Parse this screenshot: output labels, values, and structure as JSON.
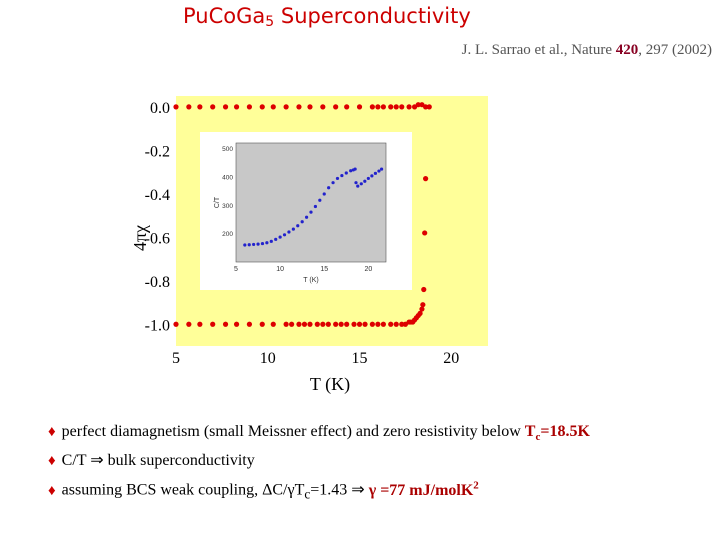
{
  "header": {
    "title_main": "PuCoGa",
    "title_sub": "5",
    "title_rest": " Superconductivity",
    "citation_authors": "J. L. Sarrao et al., Nature ",
    "citation_volume": "420",
    "citation_rest": ", 297 (2002)"
  },
  "chart_data": {
    "type": "scatter",
    "xlabel": "T  (K)",
    "ylabel": "4πχ",
    "xlim": [
      5,
      22
    ],
    "ylim": [
      -1.1,
      0.05
    ],
    "xticks": [
      "5",
      "10",
      "15",
      "20"
    ],
    "yticks": [
      "0.0",
      "-0.2",
      "-0.4",
      "-0.6",
      "-0.8",
      "-1.0"
    ],
    "background_color": "#ffff99",
    "marker_color": "#dd0000",
    "series": [
      {
        "x": [
          5.0,
          5.7,
          6.3,
          7.0,
          7.7,
          8.3,
          9.0,
          9.7,
          10.3,
          11.0,
          11.7,
          12.3,
          13.0,
          13.7,
          14.3,
          15.0,
          15.7,
          16.0,
          16.3,
          16.7,
          17.0,
          17.3,
          17.7,
          18.0,
          18.2,
          18.4,
          18.6,
          18.8
        ],
        "y": [
          0.0,
          0.0,
          0.0,
          0.0,
          0.0,
          0.0,
          0.0,
          0.0,
          0.0,
          0.0,
          0.0,
          0.0,
          0.0,
          0.0,
          0.0,
          0.0,
          0.0,
          0.0,
          0.0,
          0.0,
          0.0,
          0.0,
          0.0,
          0.0,
          0.01,
          0.01,
          0.0,
          0.0
        ]
      },
      {
        "x": [
          5.0,
          5.7,
          6.3,
          7.0,
          7.7,
          8.3,
          9.0,
          9.7,
          10.3,
          11.0,
          11.3,
          11.7,
          12.0,
          12.3,
          12.7,
          13.0,
          13.3,
          13.7,
          14.0,
          14.3,
          14.7,
          15.0,
          15.3,
          15.7,
          16.0,
          16.3,
          16.7,
          17.0,
          17.3,
          17.5,
          17.7,
          17.8,
          17.9,
          18.0,
          18.1,
          18.2,
          18.3,
          18.4,
          18.45
        ],
        "y": [
          -1.0,
          -1.0,
          -1.0,
          -1.0,
          -1.0,
          -1.0,
          -1.0,
          -1.0,
          -1.0,
          -1.0,
          -1.0,
          -1.0,
          -1.0,
          -1.0,
          -1.0,
          -1.0,
          -1.0,
          -1.0,
          -1.0,
          -1.0,
          -1.0,
          -1.0,
          -1.0,
          -1.0,
          -1.0,
          -1.0,
          -1.0,
          -1.0,
          -1.0,
          -1.0,
          -0.99,
          -0.99,
          -0.99,
          -0.98,
          -0.97,
          -0.96,
          -0.95,
          -0.93,
          -0.91
        ]
      },
      {
        "x": [
          18.5,
          18.55,
          18.6
        ],
        "y": [
          -0.84,
          -0.58,
          -0.33
        ]
      }
    ],
    "inset": {
      "xlabel": "T (K)",
      "ylabel": "C/T",
      "xlim": [
        5,
        22
      ],
      "ylim": [
        100,
        520
      ],
      "xticks": [
        "5",
        "10",
        "15",
        "20"
      ],
      "yticks": [
        "500",
        "400",
        "300",
        "200"
      ],
      "background_color": "#c8c8c8",
      "marker_color": "#2222cc",
      "points": [
        {
          "x": 6,
          "y": 160
        },
        {
          "x": 6.5,
          "y": 161
        },
        {
          "x": 7,
          "y": 162
        },
        {
          "x": 7.5,
          "y": 163
        },
        {
          "x": 8,
          "y": 165
        },
        {
          "x": 8.5,
          "y": 168
        },
        {
          "x": 9,
          "y": 173
        },
        {
          "x": 9.5,
          "y": 180
        },
        {
          "x": 10,
          "y": 188
        },
        {
          "x": 10.5,
          "y": 196
        },
        {
          "x": 11,
          "y": 206
        },
        {
          "x": 11.5,
          "y": 216
        },
        {
          "x": 12,
          "y": 228
        },
        {
          "x": 12.5,
          "y": 242
        },
        {
          "x": 13,
          "y": 258
        },
        {
          "x": 13.5,
          "y": 276
        },
        {
          "x": 14,
          "y": 296
        },
        {
          "x": 14.5,
          "y": 318
        },
        {
          "x": 15,
          "y": 340
        },
        {
          "x": 15.5,
          "y": 362
        },
        {
          "x": 16,
          "y": 380
        },
        {
          "x": 16.5,
          "y": 395
        },
        {
          "x": 17,
          "y": 405
        },
        {
          "x": 17.5,
          "y": 414
        },
        {
          "x": 18,
          "y": 422
        },
        {
          "x": 18.3,
          "y": 425
        },
        {
          "x": 18.5,
          "y": 428
        },
        {
          "x": 18.6,
          "y": 380
        },
        {
          "x": 18.8,
          "y": 368
        },
        {
          "x": 19.2,
          "y": 376
        },
        {
          "x": 19.6,
          "y": 385
        },
        {
          "x": 20,
          "y": 395
        },
        {
          "x": 20.4,
          "y": 404
        },
        {
          "x": 20.8,
          "y": 413
        },
        {
          "x": 21.2,
          "y": 421
        },
        {
          "x": 21.5,
          "y": 428
        }
      ]
    }
  },
  "bullets": [
    {
      "text": "perfect diamagnetism (small Meissner effect) and zero resistivity below ",
      "hl": "T",
      "hl_sub": "c",
      "hl_rest": "=18.5K",
      "hl_sup": ""
    },
    {
      "text": "C/T ⇒ bulk superconductivity",
      "hl": "",
      "hl_sub": "",
      "hl_rest": "",
      "hl_sup": ""
    },
    {
      "text": "assuming BCS weak coupling, ΔC/γT",
      "text_sub": "c",
      "text_rest": "=1.43 ⇒ ",
      "hl": "γ",
      "hl_sub": "",
      "hl_rest": " =77 mJ/molK",
      "hl_sup": "2"
    }
  ],
  "bullet_glyph": "♦"
}
